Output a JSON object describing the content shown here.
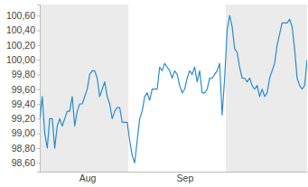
{
  "chart_data": {
    "type": "line",
    "categories": [
      null,
      null,
      null,
      null,
      null,
      null,
      null,
      null,
      null,
      null,
      null,
      null,
      null,
      null,
      null,
      null,
      null,
      null,
      null,
      "Aug",
      null,
      null,
      null,
      null,
      null,
      null,
      null,
      null,
      null,
      null,
      null,
      null,
      null,
      null,
      null,
      null,
      null,
      null,
      null,
      null,
      null,
      null,
      null,
      null,
      null,
      null,
      null,
      null,
      null,
      null,
      null,
      null,
      null,
      null,
      null,
      null,
      null,
      null,
      "Sep",
      null,
      null,
      null,
      null,
      null,
      null,
      null,
      null,
      null,
      null,
      null,
      null,
      null,
      null,
      null,
      null,
      null,
      null,
      null,
      null,
      null,
      null,
      null,
      null,
      null,
      null,
      null,
      null,
      null,
      null,
      null,
      null,
      null,
      null,
      null,
      null,
      null,
      null,
      null,
      null,
      null,
      null,
      null,
      null,
      null,
      null,
      null,
      null,
      null
    ],
    "values": [
      99.2,
      99.5,
      99.0,
      98.8,
      99.2,
      99.2,
      98.8,
      99.1,
      99.2,
      99.1,
      99.2,
      99.3,
      99.3,
      99.5,
      99.1,
      99.3,
      99.4,
      99.4,
      99.5,
      99.6,
      99.8,
      99.85,
      99.85,
      99.75,
      99.5,
      99.6,
      99.7,
      99.5,
      99.4,
      99.2,
      99.3,
      99.35,
      99.35,
      99.15,
      99.15,
      99.15,
      98.9,
      98.7,
      98.6,
      98.9,
      99.2,
      99.3,
      99.5,
      99.55,
      99.45,
      99.6,
      99.6,
      99.6,
      99.9,
      99.85,
      99.95,
      99.9,
      99.85,
      99.75,
      99.85,
      99.8,
      99.65,
      99.55,
      99.6,
      99.75,
      99.85,
      99.8,
      99.9,
      99.7,
      99.85,
      99.55,
      99.55,
      99.6,
      99.75,
      99.75,
      99.8,
      99.85,
      99.95,
      99.25,
      99.75,
      100.4,
      100.6,
      100.45,
      100.15,
      100.1,
      99.9,
      99.75,
      99.75,
      99.7,
      99.75,
      99.65,
      99.6,
      99.65,
      99.5,
      99.6,
      99.5,
      99.55,
      99.75,
      99.85,
      99.95,
      100.2,
      100.35,
      100.5,
      100.5,
      100.5,
      100.55,
      100.45,
      100.15,
      99.75,
      99.65,
      99.6,
      99.65,
      100.0
    ],
    "color": "#2a8bd0",
    "ylim": [
      98.48,
      100.75
    ],
    "yticks": [
      {
        "value": 98.6,
        "label": "98,60"
      },
      {
        "value": 98.8,
        "label": "98,80"
      },
      {
        "value": 99.0,
        "label": "99,00"
      },
      {
        "value": 99.2,
        "label": "99,20"
      },
      {
        "value": 99.4,
        "label": "99,40"
      },
      {
        "value": 99.6,
        "label": "99,60"
      },
      {
        "value": 99.8,
        "label": "99,80"
      },
      {
        "value": 100.0,
        "label": "100,00"
      },
      {
        "value": 100.2,
        "label": "100,20"
      },
      {
        "value": 100.4,
        "label": "100,40"
      },
      {
        "value": 100.6,
        "label": "100,60"
      }
    ],
    "grid": false
  }
}
